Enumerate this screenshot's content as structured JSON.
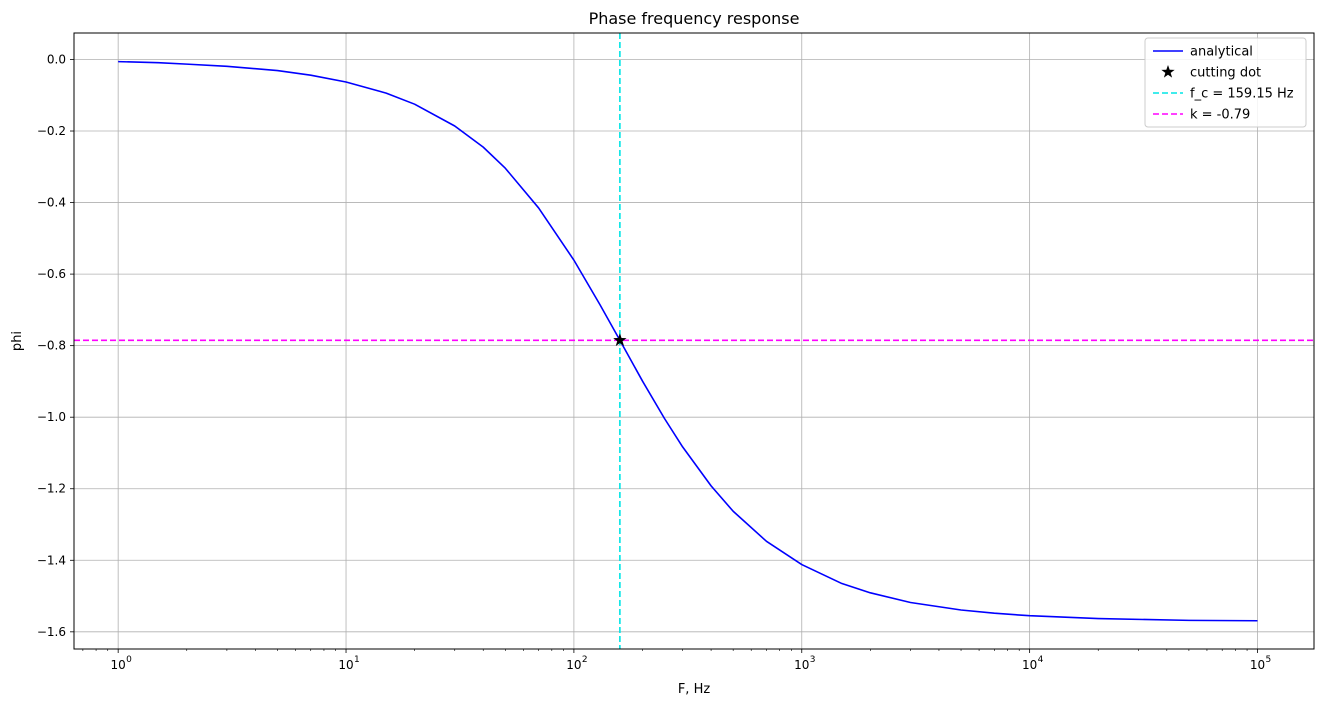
{
  "chart_data": {
    "type": "line",
    "title": "Phase frequency response",
    "xlabel": "F, Hz",
    "ylabel": "phi",
    "xscale": "log",
    "xlim": [
      0.64,
      177000
    ],
    "ylim": [
      -1.648,
      0.074
    ],
    "grid": true,
    "legend_position": "top-right",
    "x_ticks": [
      {
        "value": 1,
        "base": "10",
        "exp": "0"
      },
      {
        "value": 10,
        "base": "10",
        "exp": "1"
      },
      {
        "value": 100,
        "base": "10",
        "exp": "2"
      },
      {
        "value": 1000,
        "base": "10",
        "exp": "3"
      },
      {
        "value": 10000,
        "base": "10",
        "exp": "4"
      },
      {
        "value": 100000,
        "base": "10",
        "exp": "5"
      }
    ],
    "y_ticks": [
      {
        "value": 0.0,
        "label": "0.0"
      },
      {
        "value": -0.2,
        "label": "−0.2"
      },
      {
        "value": -0.4,
        "label": "−0.4"
      },
      {
        "value": -0.6,
        "label": "−0.6"
      },
      {
        "value": -0.8,
        "label": "−0.8"
      },
      {
        "value": -1.0,
        "label": "−1.0"
      },
      {
        "value": -1.2,
        "label": "−1.2"
      },
      {
        "value": -1.4,
        "label": "−1.4"
      },
      {
        "value": -1.6,
        "label": "−1.6"
      }
    ],
    "series": [
      {
        "name": "analytical",
        "color": "#0000ff",
        "style": "solid",
        "points": [
          [
            1,
            -0.006
          ],
          [
            1.5,
            -0.009
          ],
          [
            2,
            -0.013
          ],
          [
            3,
            -0.019
          ],
          [
            5,
            -0.031
          ],
          [
            7,
            -0.044
          ],
          [
            10,
            -0.063
          ],
          [
            15,
            -0.094
          ],
          [
            20,
            -0.125
          ],
          [
            30,
            -0.186
          ],
          [
            40,
            -0.245
          ],
          [
            50,
            -0.304
          ],
          [
            70,
            -0.415
          ],
          [
            100,
            -0.561
          ],
          [
            130,
            -0.685
          ],
          [
            159.15,
            -0.785
          ],
          [
            200,
            -0.899
          ],
          [
            250,
            -1.004
          ],
          [
            300,
            -1.083
          ],
          [
            400,
            -1.192
          ],
          [
            500,
            -1.263
          ],
          [
            700,
            -1.347
          ],
          [
            1000,
            -1.412
          ],
          [
            1500,
            -1.465
          ],
          [
            2000,
            -1.491
          ],
          [
            3000,
            -1.518
          ],
          [
            5000,
            -1.539
          ],
          [
            7000,
            -1.548
          ],
          [
            10000,
            -1.555
          ],
          [
            20000,
            -1.563
          ],
          [
            50000,
            -1.568
          ],
          [
            100000,
            -1.569
          ]
        ]
      },
      {
        "name": "cutting dot",
        "color": "#000000",
        "style": "marker-star",
        "points": [
          [
            159.15,
            -0.785
          ]
        ]
      },
      {
        "name": "f_c = 159.15 Hz",
        "color": "#00e5e5",
        "style": "dashed-vertical",
        "x": 159.15
      },
      {
        "name": "k = -0.79",
        "color": "#ff00ff",
        "style": "dashed-horizontal",
        "y": -0.785
      }
    ]
  }
}
